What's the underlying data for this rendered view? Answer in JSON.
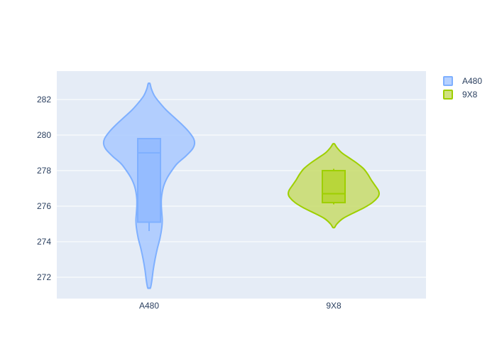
{
  "chart_data": {
    "type": "violin",
    "title": "",
    "xlabel": "",
    "ylabel": "",
    "categories": [
      "A480",
      "9X8"
    ],
    "ylim": [
      270.8,
      283.6
    ],
    "y_ticks": [
      272,
      274,
      276,
      278,
      280,
      282
    ],
    "grid": true,
    "legend_position": "top-right",
    "series": [
      {
        "name": "A480",
        "category": "A480",
        "color": "#7fb0ff",
        "fill": "#a9c9ff",
        "box_fill": "#95bcff",
        "min": 271.4,
        "max": 282.9,
        "whisker_low": 274.6,
        "whisker_high": 279.8,
        "q1": 275.1,
        "median": 279.0,
        "q3": 279.8,
        "density": [
          [
            271.4,
            0.03
          ],
          [
            271.8,
            0.06
          ],
          [
            272.4,
            0.09
          ],
          [
            273.0,
            0.13
          ],
          [
            273.6,
            0.18
          ],
          [
            274.2,
            0.24
          ],
          [
            274.8,
            0.28
          ],
          [
            275.2,
            0.29
          ],
          [
            275.6,
            0.28
          ],
          [
            276.0,
            0.27
          ],
          [
            276.4,
            0.27
          ],
          [
            276.8,
            0.29
          ],
          [
            277.2,
            0.33
          ],
          [
            277.6,
            0.4
          ],
          [
            278.0,
            0.5
          ],
          [
            278.4,
            0.62
          ],
          [
            278.8,
            0.8
          ],
          [
            279.2,
            0.95
          ],
          [
            279.5,
            1.0
          ],
          [
            279.8,
            0.98
          ],
          [
            280.2,
            0.87
          ],
          [
            280.6,
            0.72
          ],
          [
            281.0,
            0.55
          ],
          [
            281.4,
            0.38
          ],
          [
            281.8,
            0.24
          ],
          [
            282.2,
            0.12
          ],
          [
            282.6,
            0.05
          ],
          [
            282.9,
            0.02
          ]
        ]
      },
      {
        "name": "9X8",
        "category": "9X8",
        "color": "#9ecf00",
        "fill": "#c8dc6a",
        "box_fill": "#b8d63a",
        "min": 274.8,
        "max": 279.5,
        "whisker_low": 276.1,
        "whisker_high": 278.1,
        "q1": 276.2,
        "median": 276.7,
        "q3": 278.0,
        "density": [
          [
            274.8,
            0.02
          ],
          [
            275.0,
            0.07
          ],
          [
            275.3,
            0.2
          ],
          [
            275.6,
            0.42
          ],
          [
            275.9,
            0.66
          ],
          [
            276.2,
            0.85
          ],
          [
            276.5,
            0.97
          ],
          [
            276.7,
            1.0
          ],
          [
            276.9,
            0.98
          ],
          [
            277.2,
            0.9
          ],
          [
            277.5,
            0.82
          ],
          [
            277.8,
            0.75
          ],
          [
            278.1,
            0.66
          ],
          [
            278.4,
            0.52
          ],
          [
            278.7,
            0.35
          ],
          [
            279.0,
            0.18
          ],
          [
            279.3,
            0.07
          ],
          [
            279.5,
            0.02
          ]
        ]
      }
    ]
  }
}
